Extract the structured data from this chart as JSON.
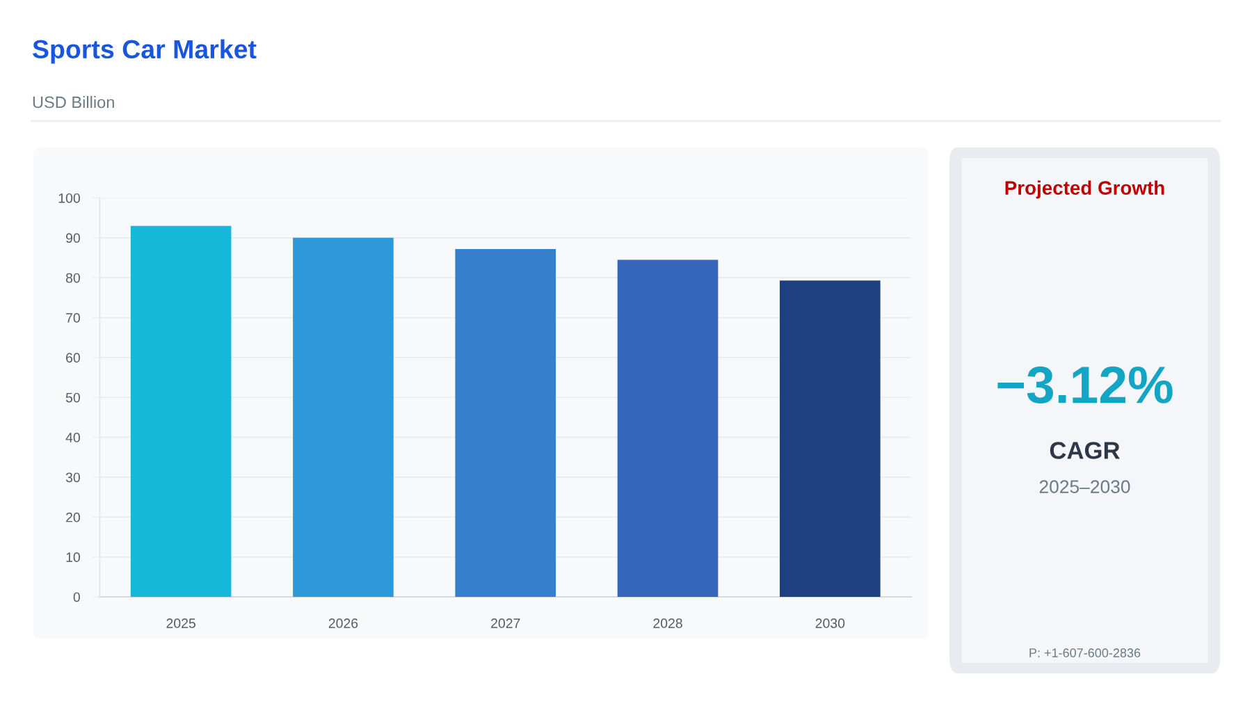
{
  "chart_data": [
    {
      "type": "bar",
      "title": "Sports Car Market",
      "subtitle": "USD Billion",
      "categories": [
        "2025",
        "2026",
        "2027",
        "2028",
        "2030"
      ],
      "values": [
        93.0,
        90.0,
        87.2,
        84.5,
        79.3
      ],
      "colors": [
        "#16b8da",
        "#2d99d9",
        "#357fcc",
        "#3566ba",
        "#1f4080"
      ],
      "ylim": [
        0,
        100
      ],
      "yticks": [
        0,
        10,
        20,
        30,
        40,
        50,
        60,
        70,
        80,
        90,
        100
      ],
      "grid": "y"
    },
    {
      "type": "other",
      "title": "Projected Growth",
      "annotations": [
        "−3.12%",
        "CAGR",
        "2025–2030",
        "P: +1-607-600-2836"
      ]
    }
  ]
}
